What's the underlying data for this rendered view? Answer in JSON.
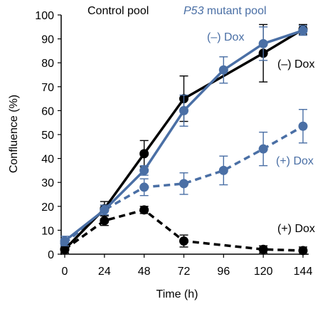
{
  "chart_data": {
    "type": "line",
    "title_control": "Control pool",
    "title_mutant_gene": "P53",
    "title_mutant_rest": " mutant pool",
    "xlabel": "Time (h)",
    "ylabel": "Confluence (%)",
    "x": [
      0,
      24,
      48,
      72,
      96,
      120,
      144
    ],
    "xlim": [
      0,
      144
    ],
    "ylim": [
      0,
      100
    ],
    "xticks": [
      0,
      24,
      48,
      72,
      96,
      120,
      144
    ],
    "yticks": [
      0,
      10,
      20,
      30,
      40,
      50,
      60,
      70,
      80,
      90,
      100
    ],
    "grid": false,
    "series": [
      {
        "name": "(–) Dox",
        "pool": "control",
        "color": "#000000",
        "dashed": false,
        "values": [
          2,
          19,
          42,
          65,
          null,
          84,
          94
        ],
        "err": [
          1.5,
          3,
          5.5,
          9.5,
          0,
          12,
          2
        ]
      },
      {
        "name": "(–) Dox",
        "pool": "mutant",
        "color": "#4a6fa5",
        "dashed": false,
        "values": [
          5.5,
          18.5,
          35,
          60,
          77,
          88,
          93.5
        ],
        "err": [
          2,
          2,
          2,
          6.5,
          5.5,
          7,
          2
        ]
      },
      {
        "name": "(+) Dox",
        "pool": "mutant",
        "color": "#4a6fa5",
        "dashed": true,
        "values": [
          4.5,
          18.5,
          28,
          29.5,
          35,
          44,
          53.5
        ],
        "err": [
          1.5,
          2,
          3.5,
          4.5,
          6,
          7,
          7
        ]
      },
      {
        "name": "(+) Dox",
        "pool": "control",
        "color": "#000000",
        "dashed": true,
        "values": [
          2,
          14,
          18.5,
          5.5,
          null,
          2,
          1.5
        ],
        "err": [
          1.5,
          2,
          1.5,
          2.5,
          0,
          1.5,
          1.5
        ]
      }
    ]
  }
}
